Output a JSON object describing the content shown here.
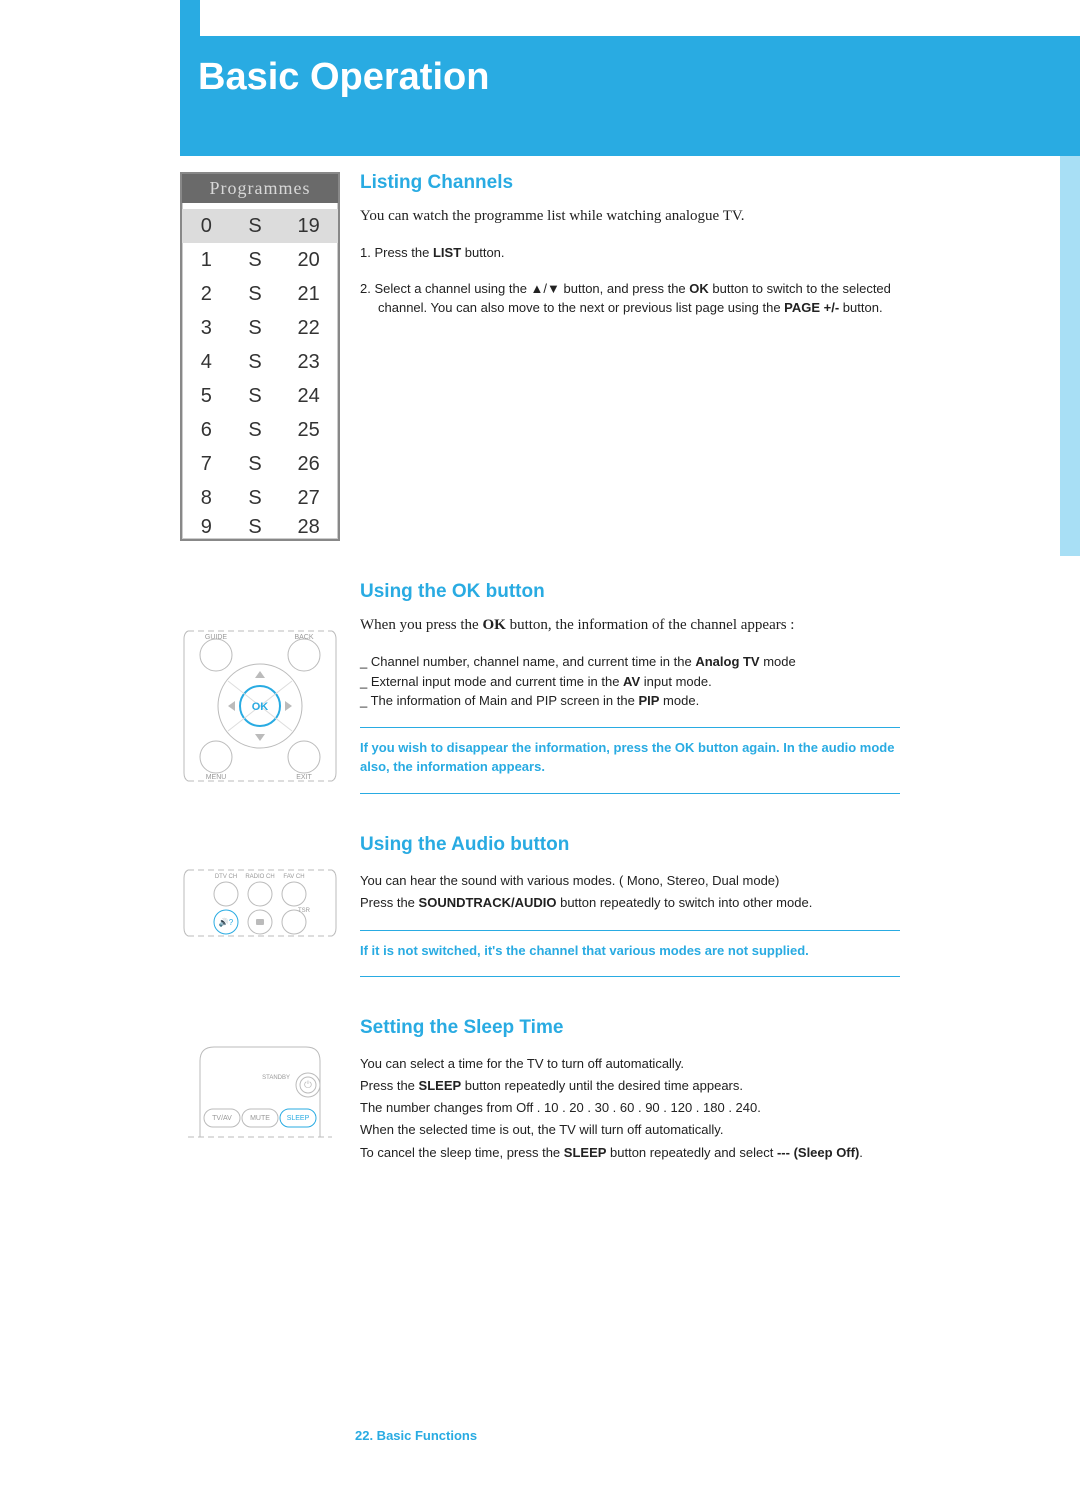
{
  "page": {
    "header_title": "Basic Operation",
    "footer": "22. Basic Functions"
  },
  "colors": {
    "primary": "#29abe2",
    "light_tab": "#a8dff5",
    "text": "#222222",
    "osd_header_bg": "#6a6a6a",
    "osd_header_fg": "#d8d8d8",
    "osd_selected": "#dcdcdc",
    "osd_border": "#888888"
  },
  "programmes": {
    "title": "Programmes",
    "rows": [
      {
        "num": "0",
        "type": "S",
        "chan": "19",
        "selected": true
      },
      {
        "num": "1",
        "type": "S",
        "chan": "20",
        "selected": false
      },
      {
        "num": "2",
        "type": "S",
        "chan": "21",
        "selected": false
      },
      {
        "num": "3",
        "type": "S",
        "chan": "22",
        "selected": false
      },
      {
        "num": "4",
        "type": "S",
        "chan": "23",
        "selected": false
      },
      {
        "num": "5",
        "type": "S",
        "chan": "24",
        "selected": false
      },
      {
        "num": "6",
        "type": "S",
        "chan": "25",
        "selected": false
      },
      {
        "num": "7",
        "type": "S",
        "chan": "26",
        "selected": false
      },
      {
        "num": "8",
        "type": "S",
        "chan": "27",
        "selected": false
      },
      {
        "num": "9",
        "type": "S",
        "chan": "28",
        "selected": false
      }
    ]
  },
  "listing": {
    "title": "Listing Channels",
    "intro": "You can watch the programme list while watching analogue TV.",
    "step1_pre": "1. Press the ",
    "step1_b": "LIST",
    "step1_post": " button.",
    "step2_pre": "2. Select a channel using the ▲/▼ button, and press the ",
    "step2_b1": "OK",
    "step2_mid": " button to switch to the selected channel. You can also move to the next or previous list page using the ",
    "step2_b2": "PAGE +/-",
    "step2_post": " button."
  },
  "okbtn": {
    "title": "Using the OK button",
    "intro_pre": "When you press the ",
    "intro_b": "OK",
    "intro_post": " button, the information of the channel appears :",
    "l1_pre": "_ Channel number, channel name, and current time in the ",
    "l1_b": "Analog TV",
    "l1_post": " mode",
    "l2_pre": "_ External input mode and current time in the ",
    "l2_b": "AV",
    "l2_post": " input mode.",
    "l3_pre": "_ The information of Main and PIP screen in the ",
    "l3_b": "PIP",
    "l3_post": " mode.",
    "note": "If you wish to disappear the information, press the OK button again. In the audio mode also, the information appears.",
    "remote": {
      "guide": "GUIDE",
      "back": "BACK",
      "menu": "MENU",
      "exit": "EXIT",
      "ok": "OK"
    }
  },
  "audio": {
    "title": "Using the Audio button",
    "line1": "You can hear the sound with various modes. ( Mono, Stereo, Dual mode)",
    "line2_pre": "Press the ",
    "line2_b": "SOUNDTRACK/AUDIO",
    "line2_post": " button repeatedly to switch into other mode.",
    "note": "If it is not switched, it's the channel that various modes are not supplied.",
    "remote": {
      "dtv": "DTV CH",
      "radio": "RADIO CH",
      "fav": "FAV CH",
      "sound": "🔊?",
      "tsr": "TSR"
    }
  },
  "sleep": {
    "title": "Setting the Sleep Time",
    "l1": "You can select a time for the TV to turn off automatically.",
    "l2_pre": "Press the ",
    "l2_b": "SLEEP",
    "l2_post": " button repeatedly until the desired time appears.",
    "l3": "The number changes from Off . 10 . 20 . 30 . 60 . 90 . 120 . 180 . 240.",
    "l4": "When the selected time is out, the TV will turn off automatically.",
    "l5_pre": "To cancel the sleep time, press the ",
    "l5_b": "SLEEP",
    "l5_mid": " button repeatedly and select ",
    "l5_b2": "--- (Sleep Off)",
    "l5_post": ".",
    "remote": {
      "standby": "STANDBY",
      "tvav": "TV/AV",
      "mute": "MUTE",
      "sleep": "SLEEP"
    }
  }
}
